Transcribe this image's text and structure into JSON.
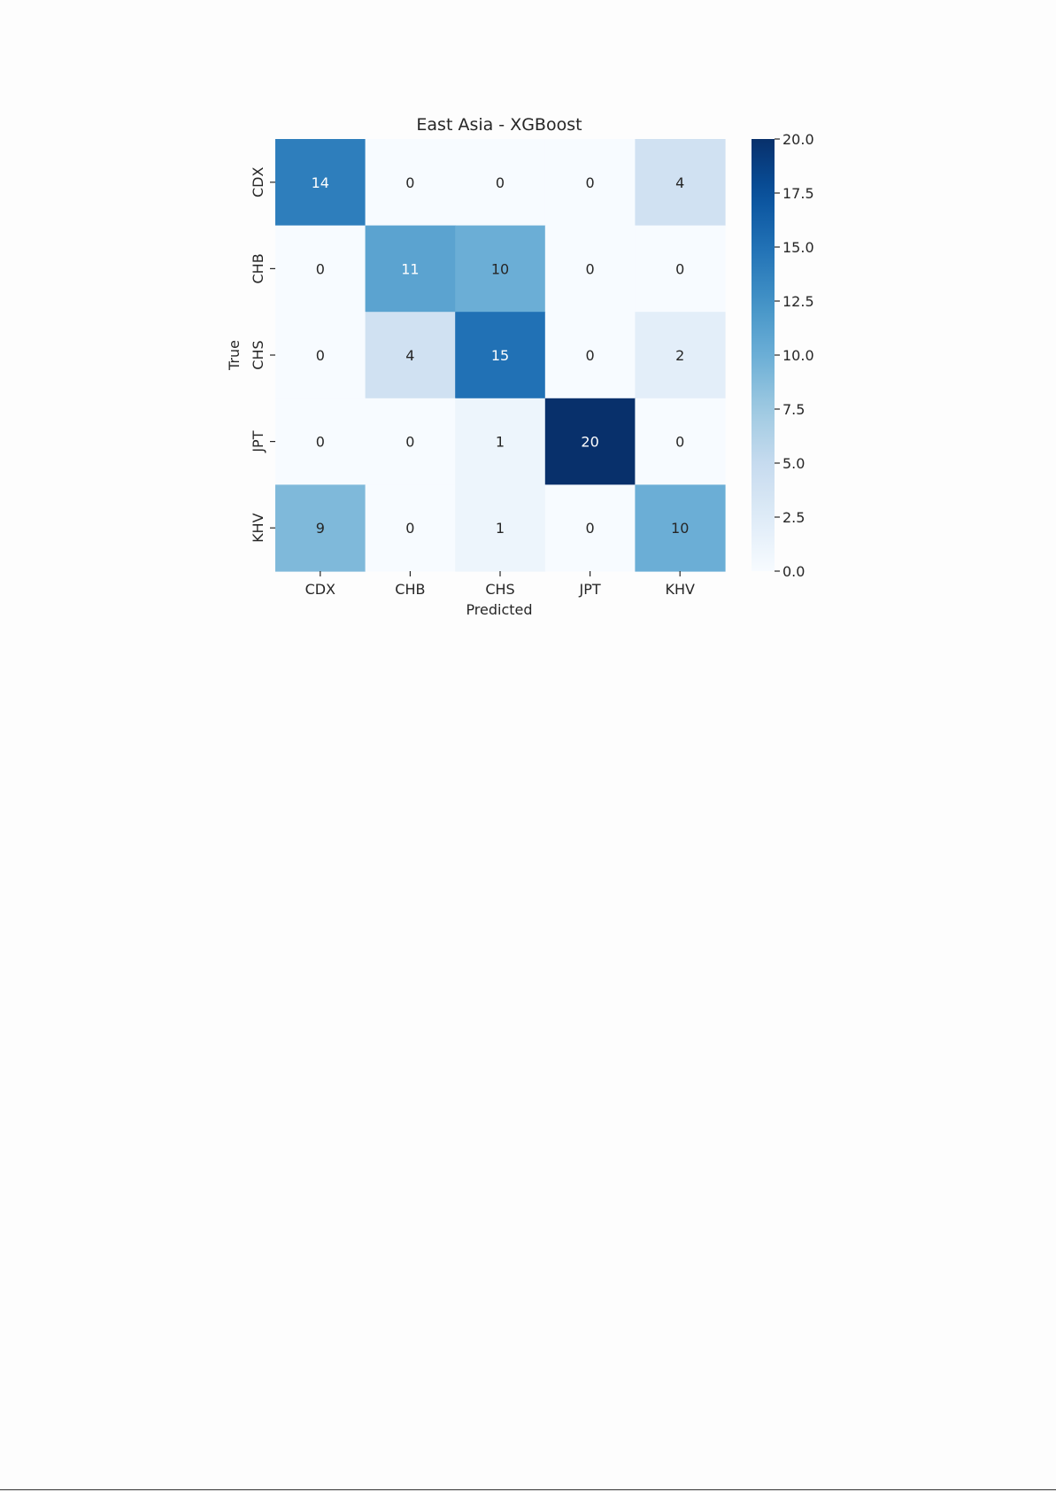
{
  "chart_data": {
    "type": "heatmap",
    "title": "East Asia - XGBoost",
    "xlabel": "Predicted",
    "ylabel": "True",
    "x_categories": [
      "CDX",
      "CHB",
      "CHS",
      "JPT",
      "KHV"
    ],
    "y_categories": [
      "CDX",
      "CHB",
      "CHS",
      "JPT",
      "KHV"
    ],
    "values": [
      [
        14,
        0,
        0,
        0,
        4
      ],
      [
        0,
        11,
        10,
        0,
        0
      ],
      [
        0,
        4,
        15,
        0,
        2
      ],
      [
        0,
        0,
        1,
        20,
        0
      ],
      [
        9,
        0,
        1,
        0,
        10
      ]
    ],
    "colorbar": {
      "range": [
        0.0,
        20.0
      ],
      "ticks": [
        "0.0",
        "2.5",
        "5.0",
        "7.5",
        "10.0",
        "12.5",
        "15.0",
        "17.5",
        "20.0"
      ]
    },
    "colormap": "Blues",
    "colors": {
      "low": "#f7fbff",
      "high": "#08306b",
      "text_dark": "#262626",
      "text_light": "#ffffff"
    }
  }
}
